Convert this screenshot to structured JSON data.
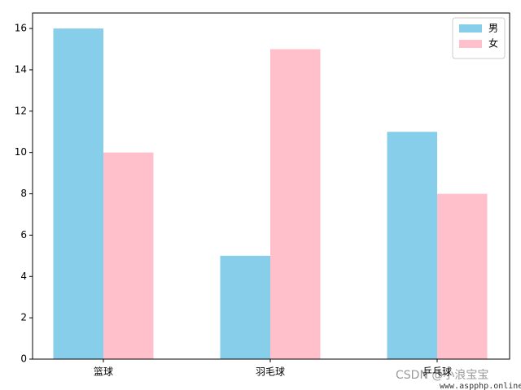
{
  "chart_data": {
    "type": "bar",
    "categories": [
      "篮球",
      "羽毛球",
      "乒乓球"
    ],
    "series": [
      {
        "name": "男",
        "color": "#87ceeb",
        "values": [
          16,
          5,
          11
        ]
      },
      {
        "name": "女",
        "color": "#ffc0cb",
        "values": [
          10,
          15,
          8
        ]
      }
    ],
    "ylim": [
      0,
      16.75
    ],
    "yticks": [
      0,
      2,
      4,
      6,
      8,
      10,
      12,
      14,
      16
    ],
    "grid": false,
    "legend": "upper right"
  },
  "watermark": {
    "text": "CSDN @小浪宝宝",
    "site": "www.aspphp.online"
  }
}
